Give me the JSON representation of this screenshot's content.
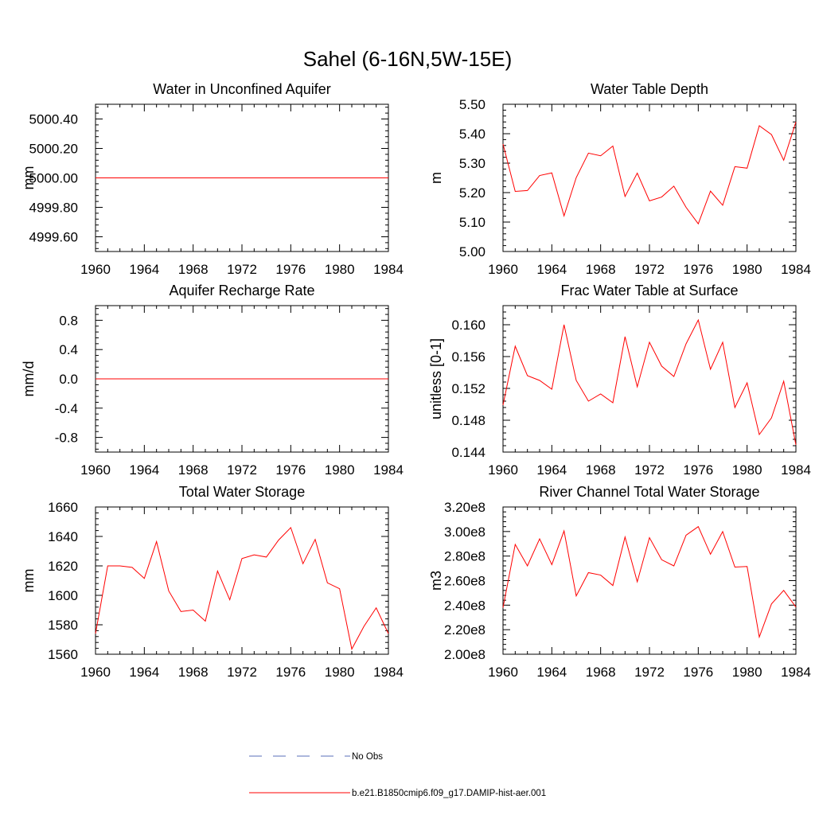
{
  "figure": {
    "title": "Sahel (6-16N,5W-15E)"
  },
  "colors": {
    "model_line": "#ff0000",
    "obs_line": "#5a6fb8",
    "axis": "#000000"
  },
  "legend": {
    "obs_label": "No Obs",
    "model_label": "b.e21.B1850cmip6.f09_g17.DAMIP-hist-aer.001"
  },
  "chart_data": [
    {
      "type": "line",
      "title": "Water in Unconfined Aquifer",
      "xlabel": "",
      "ylabel": "mm",
      "xlim": [
        1960,
        1984
      ],
      "ylim": [
        4999.5,
        5000.5
      ],
      "xticks": [
        1960,
        1964,
        1968,
        1972,
        1976,
        1980,
        1984
      ],
      "xtick_labels": [
        "1960",
        "1964",
        "1968",
        "1972",
        "1976",
        "1980",
        "1984"
      ],
      "yticks": [
        4999.6,
        4999.8,
        5000.0,
        5000.2,
        5000.4
      ],
      "ytick_labels": [
        "4999.60",
        "4999.80",
        "5000.00",
        "5000.20",
        "5000.40"
      ],
      "x": [
        1960,
        1961,
        1962,
        1963,
        1964,
        1965,
        1966,
        1967,
        1968,
        1969,
        1970,
        1971,
        1972,
        1973,
        1974,
        1975,
        1976,
        1977,
        1978,
        1979,
        1980,
        1981,
        1982,
        1983,
        1984
      ],
      "series": [
        {
          "values": [
            5000,
            5000,
            5000,
            5000,
            5000,
            5000,
            5000,
            5000,
            5000,
            5000,
            5000,
            5000,
            5000,
            5000,
            5000,
            5000,
            5000,
            5000,
            5000,
            5000,
            5000,
            5000,
            5000,
            5000,
            5000
          ]
        }
      ]
    },
    {
      "type": "line",
      "title": "Water Table Depth",
      "xlabel": "",
      "ylabel": "m",
      "xlim": [
        1960,
        1984
      ],
      "ylim": [
        5.0,
        5.5
      ],
      "xticks": [
        1960,
        1964,
        1968,
        1972,
        1976,
        1980,
        1984
      ],
      "xtick_labels": [
        "1960",
        "1964",
        "1968",
        "1972",
        "1976",
        "1980",
        "1984"
      ],
      "yticks": [
        5.0,
        5.1,
        5.2,
        5.3,
        5.4,
        5.5
      ],
      "ytick_labels": [
        "5.00",
        "5.10",
        "5.20",
        "5.30",
        "5.40",
        "5.50"
      ],
      "x": [
        1960,
        1961,
        1962,
        1963,
        1964,
        1965,
        1966,
        1967,
        1968,
        1969,
        1970,
        1971,
        1972,
        1973,
        1974,
        1975,
        1976,
        1977,
        1978,
        1979,
        1980,
        1981,
        1982,
        1983,
        1984
      ],
      "series": [
        {
          "values": [
            5.365,
            5.204,
            5.207,
            5.258,
            5.267,
            5.121,
            5.251,
            5.334,
            5.325,
            5.358,
            5.187,
            5.266,
            5.172,
            5.185,
            5.222,
            5.15,
            5.094,
            5.205,
            5.157,
            5.288,
            5.283,
            5.427,
            5.397,
            5.31,
            5.44
          ]
        }
      ]
    },
    {
      "type": "line",
      "title": "Aquifer Recharge Rate",
      "xlabel": "",
      "ylabel": "mm/d",
      "xlim": [
        1960,
        1984
      ],
      "ylim": [
        -1.0,
        1.0
      ],
      "xticks": [
        1960,
        1964,
        1968,
        1972,
        1976,
        1980,
        1984
      ],
      "xtick_labels": [
        "1960",
        "1964",
        "1968",
        "1972",
        "1976",
        "1980",
        "1984"
      ],
      "yticks": [
        -0.8,
        -0.4,
        0.0,
        0.4,
        0.8
      ],
      "ytick_labels": [
        "-0.8",
        "-0.4",
        "0.0",
        "0.4",
        "0.8"
      ],
      "x": [
        1960,
        1961,
        1962,
        1963,
        1964,
        1965,
        1966,
        1967,
        1968,
        1969,
        1970,
        1971,
        1972,
        1973,
        1974,
        1975,
        1976,
        1977,
        1978,
        1979,
        1980,
        1981,
        1982,
        1983,
        1984
      ],
      "series": [
        {
          "values": [
            0,
            0,
            0,
            0,
            0,
            0,
            0,
            0,
            0,
            0,
            0,
            0,
            0,
            0,
            0,
            0,
            0,
            0,
            0,
            0,
            0,
            0,
            0,
            0,
            0
          ]
        }
      ]
    },
    {
      "type": "line",
      "title": "Frac Water Table at Surface",
      "xlabel": "",
      "ylabel": "unitless [0-1]",
      "xlim": [
        1960,
        1984
      ],
      "ylim": [
        0.144,
        0.1624
      ],
      "xticks": [
        1960,
        1964,
        1968,
        1972,
        1976,
        1980,
        1984
      ],
      "xtick_labels": [
        "1960",
        "1964",
        "1968",
        "1972",
        "1976",
        "1980",
        "1984"
      ],
      "yticks": [
        0.144,
        0.148,
        0.152,
        0.156,
        0.16
      ],
      "ytick_labels": [
        "0.144",
        "0.148",
        "0.152",
        "0.156",
        "0.160"
      ],
      "x": [
        1960,
        1961,
        1962,
        1963,
        1964,
        1965,
        1966,
        1967,
        1968,
        1969,
        1970,
        1971,
        1972,
        1973,
        1974,
        1975,
        1976,
        1977,
        1978,
        1979,
        1980,
        1981,
        1982,
        1983,
        1984
      ],
      "series": [
        {
          "values": [
            0.1499,
            0.1573,
            0.1536,
            0.153,
            0.1519,
            0.16,
            0.153,
            0.1504,
            0.1513,
            0.1502,
            0.1585,
            0.1522,
            0.1578,
            0.1548,
            0.1535,
            0.1576,
            0.1606,
            0.1544,
            0.1578,
            0.1496,
            0.1527,
            0.1462,
            0.1483,
            0.1529,
            0.1449
          ]
        }
      ]
    },
    {
      "type": "line",
      "title": "Total Water Storage",
      "xlabel": "",
      "ylabel": "mm",
      "xlim": [
        1960,
        1984
      ],
      "ylim": [
        1560,
        1660
      ],
      "xticks": [
        1960,
        1964,
        1968,
        1972,
        1976,
        1980,
        1984
      ],
      "xtick_labels": [
        "1960",
        "1964",
        "1968",
        "1972",
        "1976",
        "1980",
        "1984"
      ],
      "yticks": [
        1560,
        1580,
        1600,
        1620,
        1640,
        1660
      ],
      "ytick_labels": [
        "1560",
        "1580",
        "1600",
        "1620",
        "1640",
        "1660"
      ],
      "x": [
        1960,
        1961,
        1962,
        1963,
        1964,
        1965,
        1966,
        1967,
        1968,
        1969,
        1970,
        1971,
        1972,
        1973,
        1974,
        1975,
        1976,
        1977,
        1978,
        1979,
        1980,
        1981,
        1982,
        1983,
        1984
      ],
      "series": [
        {
          "values": [
            1574,
            1620,
            1620,
            1619,
            1611.5,
            1636.5,
            1603,
            1589,
            1590,
            1582.5,
            1616.5,
            1597,
            1625,
            1627.5,
            1626,
            1637.5,
            1646,
            1621.5,
            1638,
            1608.5,
            1604.5,
            1563.5,
            1579,
            1591.5,
            1574
          ]
        }
      ]
    },
    {
      "type": "line",
      "title": "River Channel Total Water Storage",
      "xlabel": "",
      "ylabel": "m3",
      "xlim": [
        1960,
        1984
      ],
      "ylim": [
        200000000.0,
        320000000.0
      ],
      "xticks": [
        1960,
        1964,
        1968,
        1972,
        1976,
        1980,
        1984
      ],
      "xtick_labels": [
        "1960",
        "1964",
        "1968",
        "1972",
        "1976",
        "1980",
        "1984"
      ],
      "yticks": [
        200000000.0,
        220000000.0,
        240000000.0,
        260000000.0,
        280000000.0,
        300000000.0,
        320000000.0
      ],
      "ytick_labels": [
        "2.00e8",
        "2.20e8",
        "2.40e8",
        "2.60e8",
        "2.80e8",
        "3.00e8",
        "3.20e8"
      ],
      "x": [
        1960,
        1961,
        1962,
        1963,
        1964,
        1965,
        1966,
        1967,
        1968,
        1969,
        1970,
        1971,
        1972,
        1973,
        1974,
        1975,
        1976,
        1977,
        1978,
        1979,
        1980,
        1981,
        1982,
        1983,
        1984
      ],
      "series": [
        {
          "values": [
            238000000.0,
            289500000.0,
            272000000.0,
            294000000.0,
            273000000.0,
            300500000.0,
            247500000.0,
            266500000.0,
            264500000.0,
            256000000.0,
            295500000.0,
            259000000.0,
            295000000.0,
            277000000.0,
            272000000.0,
            297000000.0,
            304000000.0,
            281500000.0,
            300000000.0,
            271000000.0,
            271500000.0,
            214000000.0,
            241000000.0,
            252000000.0,
            238500000.0
          ]
        }
      ]
    }
  ]
}
